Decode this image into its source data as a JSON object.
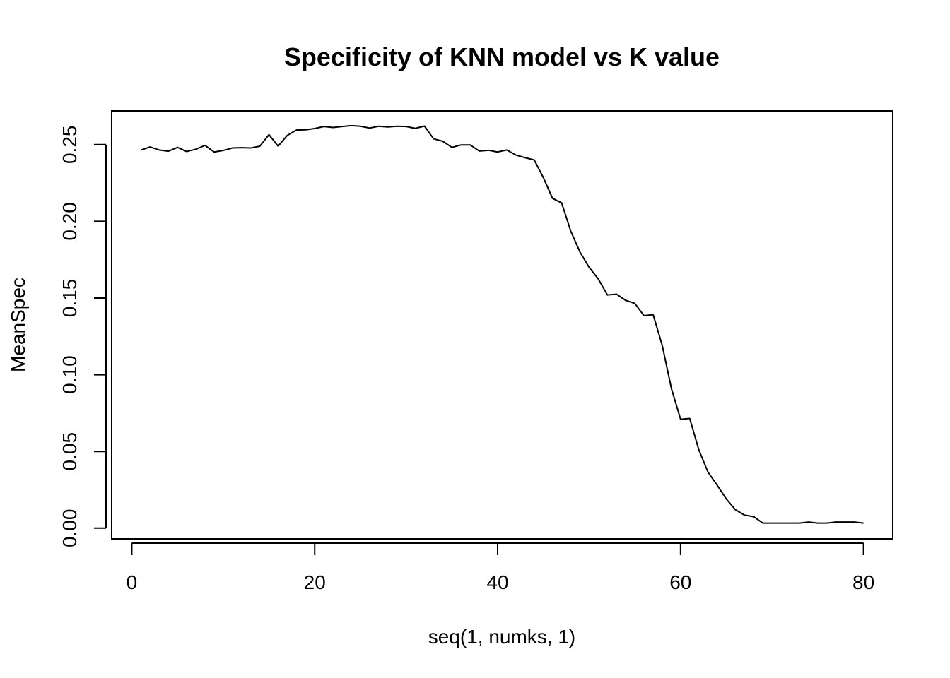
{
  "chart_data": {
    "type": "line",
    "title": "Specificity of KNN model vs K value",
    "xlabel": "seq(1, numks, 1)",
    "ylabel": "MeanSpec",
    "xlim": [
      -2.2,
      83.2
    ],
    "ylim": [
      -0.007,
      0.272
    ],
    "x_ticks": [
      0,
      20,
      40,
      60,
      80
    ],
    "x_tick_labels": [
      "0",
      "20",
      "40",
      "60",
      "80"
    ],
    "y_ticks": [
      0.0,
      0.05,
      0.1,
      0.15,
      0.2,
      0.25
    ],
    "y_tick_labels": [
      "0.00",
      "0.05",
      "0.10",
      "0.15",
      "0.20",
      "0.25"
    ],
    "grid": false,
    "legend": "none",
    "line_color": "#000000",
    "series": [
      {
        "x": [
          1,
          2,
          3,
          4,
          5,
          6,
          7,
          8,
          9,
          10,
          11,
          12,
          13,
          14,
          15,
          16,
          17,
          18,
          19,
          20,
          21,
          22,
          23,
          24,
          25,
          26,
          27,
          28,
          29,
          30,
          31,
          32,
          33,
          34,
          35,
          36,
          37,
          38,
          39,
          40,
          41,
          42,
          43,
          44,
          45,
          46,
          47,
          48,
          49,
          50,
          51,
          52,
          53,
          54,
          55,
          56,
          57,
          58,
          59,
          60,
          61,
          62,
          63,
          64,
          65,
          66,
          67,
          68,
          69,
          70,
          71,
          72,
          73,
          74,
          75,
          76,
          77,
          78,
          79,
          80
        ],
        "values": [
          0.2465,
          0.2485,
          0.2465,
          0.2457,
          0.2482,
          0.2455,
          0.247,
          0.2495,
          0.2452,
          0.2462,
          0.2478,
          0.248,
          0.2478,
          0.249,
          0.2565,
          0.249,
          0.256,
          0.2595,
          0.2597,
          0.2605,
          0.2618,
          0.2612,
          0.2618,
          0.2624,
          0.262,
          0.2608,
          0.262,
          0.2615,
          0.262,
          0.2618,
          0.2606,
          0.2621,
          0.2538,
          0.2522,
          0.2482,
          0.2498,
          0.2498,
          0.2458,
          0.2463,
          0.2452,
          0.2465,
          0.2432,
          0.2415,
          0.24,
          0.2285,
          0.215,
          0.212,
          0.1935,
          0.18,
          0.17,
          0.1625,
          0.152,
          0.1525,
          0.1485,
          0.1465,
          0.1385,
          0.1392,
          0.119,
          0.091,
          0.071,
          0.0715,
          0.051,
          0.0365,
          0.028,
          0.019,
          0.012,
          0.0085,
          0.0075,
          0.0033,
          0.0033,
          0.0033,
          0.0033,
          0.0033,
          0.004,
          0.0033,
          0.0033,
          0.004,
          0.004,
          0.004,
          0.0033
        ]
      }
    ]
  }
}
